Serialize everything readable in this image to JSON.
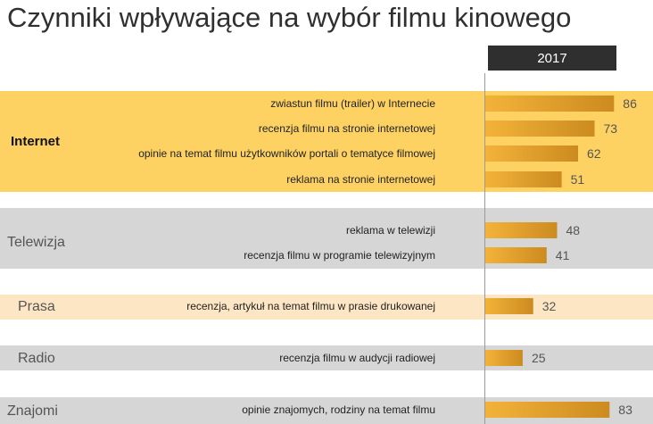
{
  "title": "Czynniki wpływające na wybór filmu kinowego",
  "series_label": "2017",
  "chart_data": {
    "type": "bar",
    "orientation": "horizontal",
    "title": "Czynniki wpływające na wybór filmu kinowego",
    "series": [
      {
        "name": "2017",
        "values": [
          86,
          73,
          62,
          51,
          48,
          41,
          32,
          25,
          83
        ]
      }
    ],
    "categories": [
      "zwiastun filmu (trailer) w Internecie",
      "recenzja filmu na stronie internetowej",
      "opinie na temat filmu użytkowników portali o tematyce filmowej",
      "reklama na stronie internetowej",
      "reklama w telewizji",
      "recenzja filmu w programie telewizyjnym",
      "recenzja, artykuł na temat filmu w prasie drukowanej",
      "recenzja filmu w audycji radiowej",
      "opinie znajomych, rodziny na temat filmu"
    ],
    "groups": [
      {
        "name": "Internet",
        "items": [
          {
            "label": "zwiastun filmu (trailer) w Internecie",
            "value": 86
          },
          {
            "label": "recenzja filmu na stronie internetowej",
            "value": 73
          },
          {
            "label": "opinie na temat filmu użytkowników portali o tematyce filmowej",
            "value": 62
          },
          {
            "label": "reklama na stronie internetowej",
            "value": 51
          }
        ]
      },
      {
        "name": "Telewizja",
        "items": [
          {
            "label": "reklama w telewizji",
            "value": 48
          },
          {
            "label": "recenzja filmu w programie telewizyjnym",
            "value": 41
          }
        ]
      },
      {
        "name": "Prasa",
        "items": [
          {
            "label": "recenzja, artykuł na temat filmu w prasie drukowanej",
            "value": 32
          }
        ]
      },
      {
        "name": "Radio",
        "items": [
          {
            "label": "recenzja filmu w audycji radiowej",
            "value": 25
          }
        ]
      },
      {
        "name": "Znajomi",
        "items": [
          {
            "label": "opinie znajomych, rodziny na temat filmu",
            "value": 83
          }
        ]
      }
    ],
    "xlim": [
      0,
      100
    ],
    "grid": false,
    "colors": {
      "bar_light": "#f3b33a",
      "bar_dark": "#cc8b1f",
      "value_text": "#555555",
      "band_internet": "#fdd262",
      "band_tv": "#d6d6d6",
      "band_prasa": "#fde6c4",
      "band_radio": "#d6d6d6",
      "band_znajomi": "#d6d6d6"
    }
  }
}
